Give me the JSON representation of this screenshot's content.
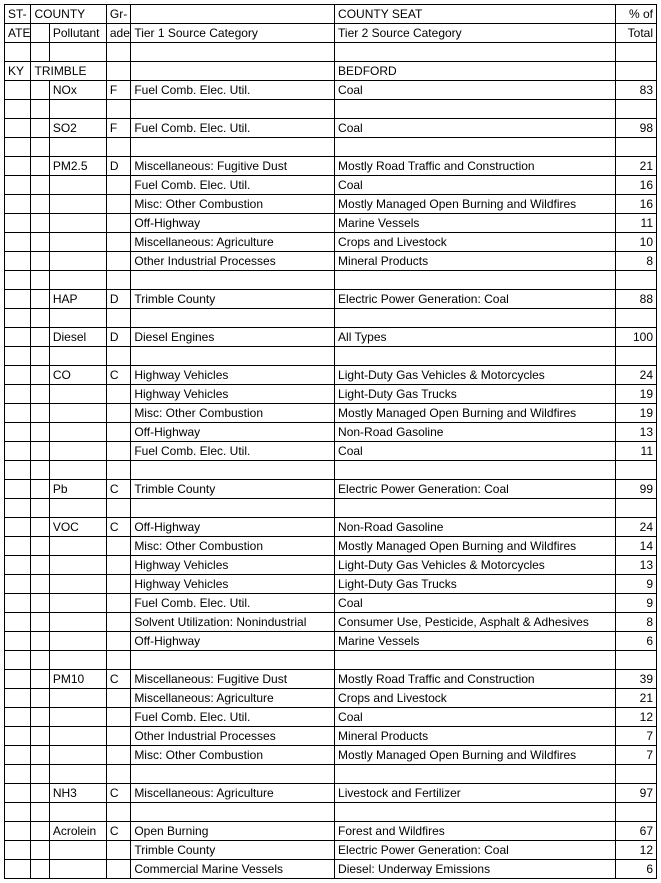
{
  "headers": {
    "row1": [
      "ST-",
      "COUNTY",
      "",
      "Gr-",
      "",
      "COUNTY SEAT",
      "% of"
    ],
    "row2": [
      "ATE",
      "",
      "Pollutant",
      "ade",
      "Tier 1 Source Category",
      "Tier 2 Source Category",
      "Total"
    ]
  },
  "rows": [
    [
      "",
      "",
      "",
      "",
      "",
      "",
      ""
    ],
    [
      "KY",
      "TRIMBLE",
      "",
      "",
      "",
      "BEDFORD",
      ""
    ],
    [
      "",
      "",
      "NOx",
      "F",
      "Fuel Comb. Elec. Util.",
      "Coal",
      "83"
    ],
    [
      "",
      "",
      "",
      "",
      "",
      "",
      ""
    ],
    [
      "",
      "",
      "SO2",
      "F",
      "Fuel Comb. Elec. Util.",
      "Coal",
      "98"
    ],
    [
      "",
      "",
      "",
      "",
      "",
      "",
      ""
    ],
    [
      "",
      "",
      "PM2.5",
      "D",
      "Miscellaneous: Fugitive Dust",
      "Mostly Road Traffic and Construction",
      "21"
    ],
    [
      "",
      "",
      "",
      "",
      "Fuel Comb. Elec. Util.",
      "Coal",
      "16"
    ],
    [
      "",
      "",
      "",
      "",
      "Misc: Other Combustion",
      "Mostly Managed Open Burning and Wildfires",
      "16"
    ],
    [
      "",
      "",
      "",
      "",
      "Off-Highway",
      "Marine Vessels",
      "11"
    ],
    [
      "",
      "",
      "",
      "",
      "Miscellaneous: Agriculture",
      "Crops and Livestock",
      "10"
    ],
    [
      "",
      "",
      "",
      "",
      "Other Industrial Processes",
      "Mineral Products",
      "8"
    ],
    [
      "",
      "",
      "",
      "",
      "",
      "",
      ""
    ],
    [
      "",
      "",
      "HAP",
      "D",
      "Trimble County",
      "Electric Power Generation: Coal",
      "88"
    ],
    [
      "",
      "",
      "",
      "",
      "",
      "",
      ""
    ],
    [
      "",
      "",
      "Diesel",
      "D",
      "Diesel Engines",
      "All Types",
      "100"
    ],
    [
      "",
      "",
      "",
      "",
      "",
      "",
      ""
    ],
    [
      "",
      "",
      "CO",
      "C",
      "Highway Vehicles",
      "Light-Duty Gas Vehicles & Motorcycles",
      "24"
    ],
    [
      "",
      "",
      "",
      "",
      "Highway Vehicles",
      "Light-Duty Gas Trucks",
      "19"
    ],
    [
      "",
      "",
      "",
      "",
      "Misc: Other Combustion",
      "Mostly Managed Open Burning and Wildfires",
      "19"
    ],
    [
      "",
      "",
      "",
      "",
      "Off-Highway",
      "Non-Road Gasoline",
      "13"
    ],
    [
      "",
      "",
      "",
      "",
      "Fuel Comb. Elec. Util.",
      "Coal",
      "11"
    ],
    [
      "",
      "",
      "",
      "",
      "",
      "",
      ""
    ],
    [
      "",
      "",
      "Pb",
      "C",
      "Trimble County",
      "Electric Power Generation: Coal",
      "99"
    ],
    [
      "",
      "",
      "",
      "",
      "",
      "",
      ""
    ],
    [
      "",
      "",
      "VOC",
      "C",
      "Off-Highway",
      "Non-Road Gasoline",
      "24"
    ],
    [
      "",
      "",
      "",
      "",
      "Misc: Other Combustion",
      "Mostly Managed Open Burning and Wildfires",
      "14"
    ],
    [
      "",
      "",
      "",
      "",
      "Highway Vehicles",
      "Light-Duty Gas Vehicles & Motorcycles",
      "13"
    ],
    [
      "",
      "",
      "",
      "",
      "Highway Vehicles",
      "Light-Duty Gas Trucks",
      "9"
    ],
    [
      "",
      "",
      "",
      "",
      "Fuel Comb. Elec. Util.",
      "Coal",
      "9"
    ],
    [
      "",
      "",
      "",
      "",
      "Solvent Utilization: Nonindustrial",
      "Consumer Use, Pesticide, Asphalt & Adhesives",
      "8"
    ],
    [
      "",
      "",
      "",
      "",
      "Off-Highway",
      "Marine Vessels",
      "6"
    ],
    [
      "",
      "",
      "",
      "",
      "",
      "",
      ""
    ],
    [
      "",
      "",
      "PM10",
      "C",
      "Miscellaneous: Fugitive Dust",
      "Mostly Road Traffic and Construction",
      "39"
    ],
    [
      "",
      "",
      "",
      "",
      "Miscellaneous: Agriculture",
      "Crops and Livestock",
      "21"
    ],
    [
      "",
      "",
      "",
      "",
      "Fuel Comb. Elec. Util.",
      "Coal",
      "12"
    ],
    [
      "",
      "",
      "",
      "",
      "Other Industrial Processes",
      "Mineral Products",
      "7"
    ],
    [
      "",
      "",
      "",
      "",
      "Misc: Other Combustion",
      "Mostly Managed Open Burning and Wildfires",
      "7"
    ],
    [
      "",
      "",
      "",
      "",
      "",
      "",
      ""
    ],
    [
      "",
      "",
      "NH3",
      "C",
      "Miscellaneous: Agriculture",
      "Livestock and Fertilizer",
      "97"
    ],
    [
      "",
      "",
      "",
      "",
      "",
      "",
      ""
    ],
    [
      "",
      "",
      "Acrolein",
      "C",
      "Open Burning",
      "Forest and Wildfires",
      "67"
    ],
    [
      "",
      "",
      "",
      "",
      "Trimble County",
      "Electric Power Generation: Coal",
      "12"
    ],
    [
      "",
      "",
      "",
      "",
      "Commercial Marine Vessels",
      "Diesel: Underway Emissions",
      "6"
    ]
  ],
  "colClasses": [
    "col-state",
    "col-empty",
    "col-pollutant",
    "col-grade",
    "col-tier1",
    "col-tier2",
    "col-total"
  ]
}
